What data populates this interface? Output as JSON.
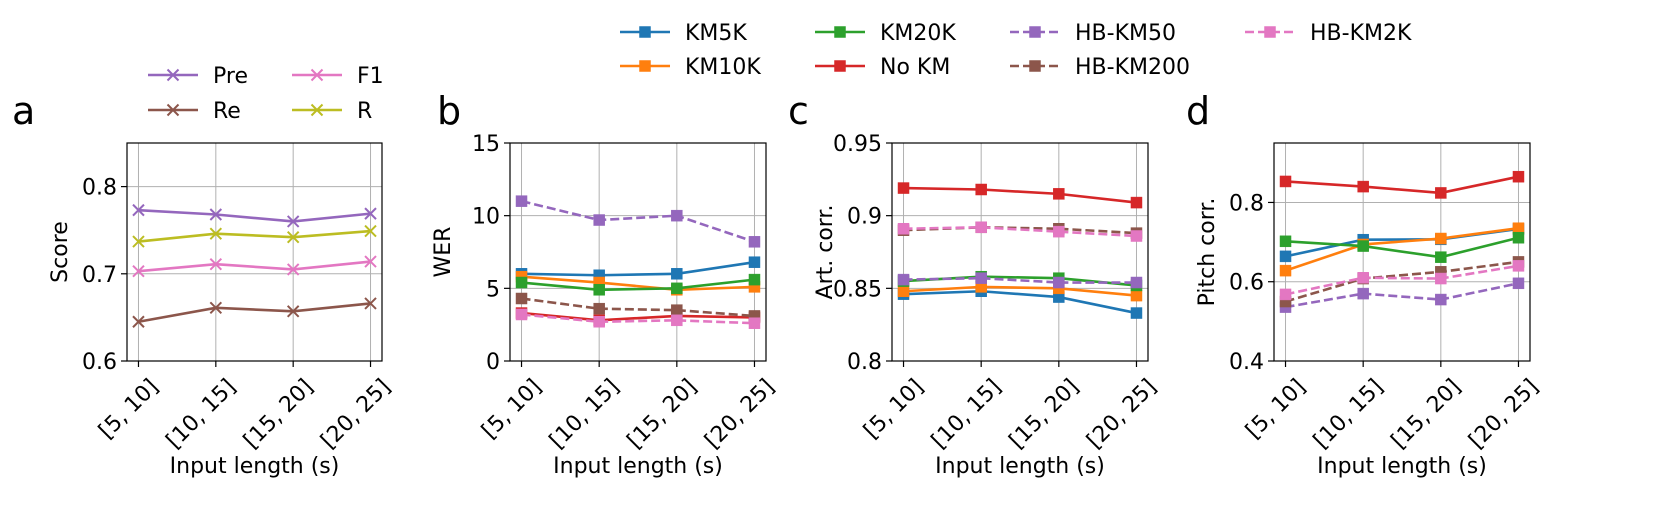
{
  "colors": {
    "Pre": "#9467bd",
    "Re": "#8c564b",
    "F1": "#e377c2",
    "R": "#bcbd22",
    "KM5K": "#1f77b4",
    "KM10K": "#ff7f0e",
    "KM20K": "#2ca02c",
    "No KM": "#d62728",
    "HB-KM50": "#9467bd",
    "HB-KM200": "#8c564b",
    "HB-KM2K": "#e377c2"
  },
  "legend_a": [
    "Pre",
    "Re",
    "F1",
    "R"
  ],
  "legend_top": [
    "KM5K",
    "KM10K",
    "KM20K",
    "No KM",
    "HB-KM50",
    "HB-KM200",
    "HB-KM2K"
  ],
  "chart_data": [
    {
      "panel": "a",
      "type": "line",
      "categories": [
        "[5, 10]",
        "[10, 15]",
        "[15, 20]",
        "[20, 25]"
      ],
      "xlabel": "Input length (s)",
      "ylabel": "Score",
      "ylim": [
        0.6,
        0.85
      ],
      "yticks": [
        0.6,
        0.7,
        0.8
      ],
      "ytick_labels": [
        "0.6",
        "0.7",
        "0.8"
      ],
      "grid": true,
      "series": [
        {
          "name": "Pre",
          "marker": "x",
          "dashed": false,
          "values": [
            0.773,
            0.768,
            0.76,
            0.769
          ]
        },
        {
          "name": "Re",
          "marker": "x",
          "dashed": false,
          "values": [
            0.645,
            0.661,
            0.657,
            0.666
          ]
        },
        {
          "name": "F1",
          "marker": "x",
          "dashed": false,
          "values": [
            0.703,
            0.711,
            0.705,
            0.714
          ]
        },
        {
          "name": "R",
          "marker": "x",
          "dashed": false,
          "values": [
            0.737,
            0.746,
            0.742,
            0.749
          ]
        }
      ]
    },
    {
      "panel": "b",
      "type": "line",
      "categories": [
        "[5, 10]",
        "[10, 15]",
        "[15, 20]",
        "[20, 25]"
      ],
      "xlabel": "Input length (s)",
      "ylabel": "WER",
      "ylim": [
        0,
        15
      ],
      "yticks": [
        0,
        5,
        10,
        15
      ],
      "ytick_labels": [
        "0",
        "5",
        "10",
        "15"
      ],
      "grid": true,
      "series": [
        {
          "name": "KM5K",
          "marker": "s",
          "dashed": false,
          "values": [
            6.0,
            5.9,
            6.0,
            6.8
          ]
        },
        {
          "name": "KM10K",
          "marker": "s",
          "dashed": false,
          "values": [
            5.8,
            5.4,
            4.9,
            5.1
          ]
        },
        {
          "name": "KM20K",
          "marker": "s",
          "dashed": false,
          "values": [
            5.4,
            4.9,
            5.0,
            5.6
          ]
        },
        {
          "name": "No KM",
          "marker": "s",
          "dashed": false,
          "values": [
            3.3,
            2.8,
            3.1,
            3.0
          ]
        },
        {
          "name": "HB-KM50",
          "marker": "s",
          "dashed": true,
          "values": [
            11.0,
            9.7,
            10.0,
            8.2
          ]
        },
        {
          "name": "HB-KM200",
          "marker": "s",
          "dashed": true,
          "values": [
            4.3,
            3.6,
            3.5,
            3.1
          ]
        },
        {
          "name": "HB-KM2K",
          "marker": "s",
          "dashed": true,
          "values": [
            3.2,
            2.7,
            2.8,
            2.6
          ]
        }
      ]
    },
    {
      "panel": "c",
      "type": "line",
      "categories": [
        "[5, 10]",
        "[10, 15]",
        "[15, 20]",
        "[20, 25]"
      ],
      "xlabel": "Input length (s)",
      "ylabel": "Art. corr.",
      "ylim": [
        0.8,
        0.95
      ],
      "yticks": [
        0.8,
        0.85,
        0.9,
        0.95
      ],
      "ytick_labels": [
        "0.8",
        "0.85",
        "0.9",
        "0.95"
      ],
      "grid": true,
      "series": [
        {
          "name": "KM5K",
          "marker": "s",
          "dashed": false,
          "values": [
            0.846,
            0.848,
            0.844,
            0.833
          ]
        },
        {
          "name": "KM10K",
          "marker": "s",
          "dashed": false,
          "values": [
            0.848,
            0.851,
            0.85,
            0.845
          ]
        },
        {
          "name": "KM20K",
          "marker": "s",
          "dashed": false,
          "values": [
            0.855,
            0.858,
            0.857,
            0.852
          ]
        },
        {
          "name": "No KM",
          "marker": "s",
          "dashed": false,
          "values": [
            0.919,
            0.918,
            0.915,
            0.909
          ]
        },
        {
          "name": "HB-KM50",
          "marker": "s",
          "dashed": true,
          "values": [
            0.856,
            0.857,
            0.854,
            0.854
          ]
        },
        {
          "name": "HB-KM200",
          "marker": "s",
          "dashed": true,
          "values": [
            0.89,
            0.892,
            0.891,
            0.888
          ]
        },
        {
          "name": "HB-KM2K",
          "marker": "s",
          "dashed": true,
          "values": [
            0.891,
            0.892,
            0.889,
            0.886
          ]
        }
      ]
    },
    {
      "panel": "d",
      "type": "line",
      "categories": [
        "[5, 10]",
        "[10, 15]",
        "[15, 20]",
        "[20, 25]"
      ],
      "xlabel": "Input length (s)",
      "ylabel": "Pitch corr.",
      "ylim": [
        0.4,
        0.95
      ],
      "yticks": [
        0.4,
        0.6,
        0.8
      ],
      "ytick_labels": [
        "0.4",
        "0.6",
        "0.8"
      ],
      "grid": true,
      "series": [
        {
          "name": "KM5K",
          "marker": "s",
          "dashed": false,
          "values": [
            0.664,
            0.706,
            0.707,
            0.733
          ]
        },
        {
          "name": "KM10K",
          "marker": "s",
          "dashed": false,
          "values": [
            0.628,
            0.694,
            0.709,
            0.735
          ]
        },
        {
          "name": "KM20K",
          "marker": "s",
          "dashed": false,
          "values": [
            0.702,
            0.69,
            0.662,
            0.711
          ]
        },
        {
          "name": "No KM",
          "marker": "s",
          "dashed": false,
          "values": [
            0.853,
            0.84,
            0.824,
            0.865
          ]
        },
        {
          "name": "HB-KM50",
          "marker": "s",
          "dashed": true,
          "values": [
            0.536,
            0.57,
            0.555,
            0.596
          ]
        },
        {
          "name": "HB-KM200",
          "marker": "s",
          "dashed": true,
          "values": [
            0.55,
            0.608,
            0.625,
            0.65
          ]
        },
        {
          "name": "HB-KM2K",
          "marker": "s",
          "dashed": true,
          "values": [
            0.568,
            0.61,
            0.608,
            0.64
          ]
        }
      ]
    }
  ],
  "panel_labels": [
    "a",
    "b",
    "c",
    "d"
  ]
}
